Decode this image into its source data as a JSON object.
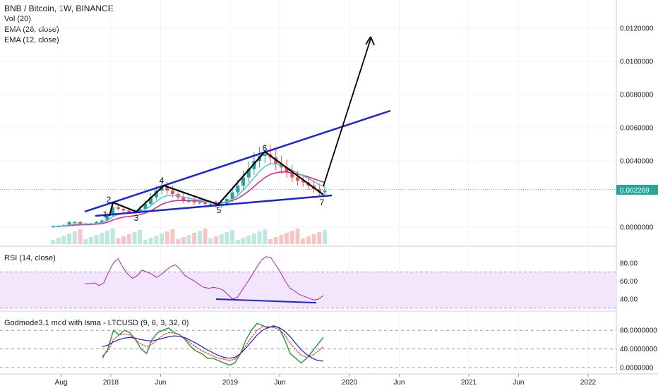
{
  "header": {
    "symbol": "BNB / Bitcoin, 1W, BINANCE",
    "indicators": [
      "Vol (20)",
      "EMA (26, close)",
      "EMA (12, close)"
    ]
  },
  "price_badge": "0.002269",
  "rsi_label": "RSI (14, close)",
  "god_label": "Godmode3.1 mod with lsma - LTCUSD (9, 6, 3, 32, 0)",
  "wave_labels": [
    "1",
    "2",
    "3",
    "4",
    "5",
    "6",
    "7"
  ],
  "colors": {
    "up": "#26a69a",
    "down": "#ef5350",
    "trend": "#1e22d8",
    "wave": "#000000",
    "ema26": "#e91e8c",
    "ema12": "#4fc3d9",
    "rsi": "#9c27b0",
    "rsi_band": "#f3e5fb",
    "god_green": "#2e9d3f",
    "god_red": "#e53935",
    "god_blue": "#1e22d8",
    "price_line": "#26a69a"
  },
  "chart_data": [
    {
      "type": "candlestick",
      "title": "BNB / Bitcoin, 1W, BINANCE",
      "x_ticks": [
        "Aug",
        "2018",
        "Jun",
        "2019",
        "Jun",
        "2020",
        "Jun",
        "2021",
        "Jun",
        "2022"
      ],
      "y_ticks": [
        "0.0120000",
        "0.0100000",
        "0.0080000",
        "0.0060000",
        "0.0040000",
        "0.0000000"
      ],
      "ylim": [
        -0.0009,
        0.0138
      ],
      "close_approx": [
        5e-05,
        6e-05,
        0.00012,
        0.0003,
        0.0003,
        0.0002,
        0.0002,
        0.0002,
        0.0003,
        0.0004,
        0.0007,
        0.0012,
        0.0011,
        0.001,
        0.0009,
        0.0009,
        0.0011,
        0.0014,
        0.0018,
        0.0022,
        0.0024,
        0.0022,
        0.002,
        0.0018,
        0.0016,
        0.0016,
        0.0015,
        0.0015,
        0.0014,
        0.0014,
        0.0013,
        0.0014,
        0.0017,
        0.0021,
        0.0025,
        0.003,
        0.0035,
        0.004,
        0.0043,
        0.0044,
        0.0042,
        0.0038,
        0.0036,
        0.0033,
        0.003,
        0.0028,
        0.0027,
        0.0025,
        0.0023,
        0.0021,
        0.0022
      ],
      "last_price": 0.002269,
      "wave_points": [
        {
          "label": "1",
          "date": "2017-12",
          "price": 0.0008
        },
        {
          "label": "2",
          "date": "2018-01",
          "price": 0.0015
        },
        {
          "label": "3",
          "date": "2018-03",
          "price": 0.001
        },
        {
          "label": "4",
          "date": "2018-06",
          "price": 0.0025
        },
        {
          "label": "5",
          "date": "2018-12",
          "price": 0.0014
        },
        {
          "label": "6",
          "date": "2019-04",
          "price": 0.0045
        },
        {
          "label": "7",
          "date": "2019-09",
          "price": 0.0019
        }
      ],
      "projection_target": 0.0115
    },
    {
      "type": "line",
      "title": "RSI (14, close)",
      "y_ticks": [
        "80.00",
        "60.00",
        "40.00"
      ],
      "ylim": [
        28,
        95
      ],
      "band": [
        30,
        70
      ],
      "values": [
        57,
        57,
        58,
        55,
        58,
        70,
        80,
        85,
        75,
        68,
        63,
        66,
        72,
        70,
        68,
        64,
        67,
        72,
        76,
        78,
        73,
        66,
        63,
        60,
        56,
        53,
        52,
        53,
        52,
        50,
        45,
        40,
        42,
        50,
        58,
        66,
        75,
        83,
        87,
        86,
        78,
        70,
        60,
        52,
        49,
        45,
        43,
        41,
        39,
        40,
        44
      ]
    },
    {
      "type": "line",
      "title": "Godmode3.1 mod with lsma - LTCUSD (9, 6, 3, 32, 0)",
      "y_ticks": [
        "80.0000000",
        "40.0000000",
        "0.0000000"
      ],
      "ylim": [
        -5,
        100
      ],
      "series": [
        {
          "values": [
            20,
            40,
            80,
            70,
            80,
            75,
            60,
            40,
            30,
            60,
            75,
            80,
            85,
            75,
            70,
            60,
            45,
            35,
            30,
            20,
            20,
            15,
            10,
            5,
            10,
            30,
            60,
            80,
            95,
            90,
            85,
            90,
            85,
            60,
            30,
            20,
            10,
            20,
            35,
            50,
            65
          ]
        },
        {
          "values": [
            25,
            35,
            60,
            70,
            72,
            70,
            60,
            50,
            45,
            50,
            60,
            70,
            75,
            74,
            70,
            62,
            52,
            44,
            36,
            30,
            25,
            20,
            18,
            15,
            18,
            30,
            48,
            65,
            80,
            88,
            88,
            86,
            82,
            70,
            52,
            38,
            26,
            22,
            26,
            35,
            45
          ]
        },
        {
          "values": [
            45,
            48,
            55,
            60,
            63,
            65,
            63,
            60,
            58,
            57,
            60,
            63,
            66,
            68,
            67,
            64,
            58,
            52,
            45,
            38,
            32,
            26,
            22,
            20,
            22,
            30,
            42,
            56,
            70,
            80,
            86,
            88,
            86,
            78,
            66,
            52,
            38,
            28,
            20,
            15,
            14
          ]
        }
      ]
    }
  ]
}
